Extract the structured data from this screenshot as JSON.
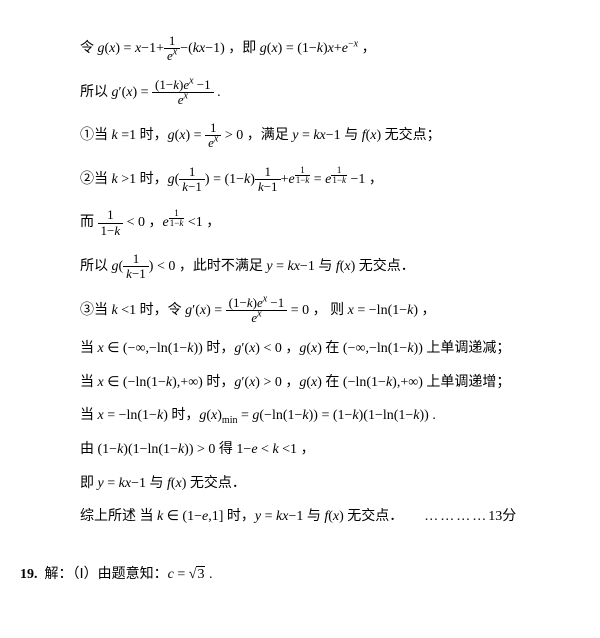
{
  "l1a": "令 ",
  "l1b": " ，即 ",
  "l1c": " ，",
  "l2a": "所以  ",
  "l2b": " .",
  "l3a": "①当 ",
  "l3b": " 时，",
  "l3c": " ，满足 ",
  "l3d": " 与 ",
  "l3e": " 无交点；",
  "l4a": "②当 ",
  "l4b": " 时，",
  "l4c": " ，",
  "l5a": "而 ",
  "l5b": " ，",
  "l5c": " ，",
  "l6a": "所以 ",
  "l6b": " ，此时不满足 ",
  "l6c": " 与 ",
  "l6d": " 无交点．",
  "l7a": "③当 ",
  "l7b": " 时，令 ",
  "l7c": "  ，  则 ",
  "l7d": " ，",
  "l8a": "当 ",
  "l8b": " 时，",
  "l8c": " ，",
  "l8d": " 在 ",
  "l8e": " 上单调递减；",
  "l9a": "当 ",
  "l9b": " 时，",
  "l9c": " ，",
  "l9d": " 在 ",
  "l9e": " 上单调递增；",
  "l10a": "当 ",
  "l10b": " 时，",
  "l10c": " .",
  "l11a": "由  ",
  "l11b": "  得 ",
  "l11c": " ，",
  "l12a": "即 ",
  "l12b": " 与 ",
  "l12c": " 无交点．",
  "l13a": "综上所述 当 ",
  "l13b": " 时，",
  "l13c": " 与 ",
  "l13d": " 无交点．",
  "l13dots": "…………",
  "l13score": "13分",
  "q19num": "19.",
  "q19a": "解：（Ⅰ）由题意知：",
  "q19b": " ."
}
